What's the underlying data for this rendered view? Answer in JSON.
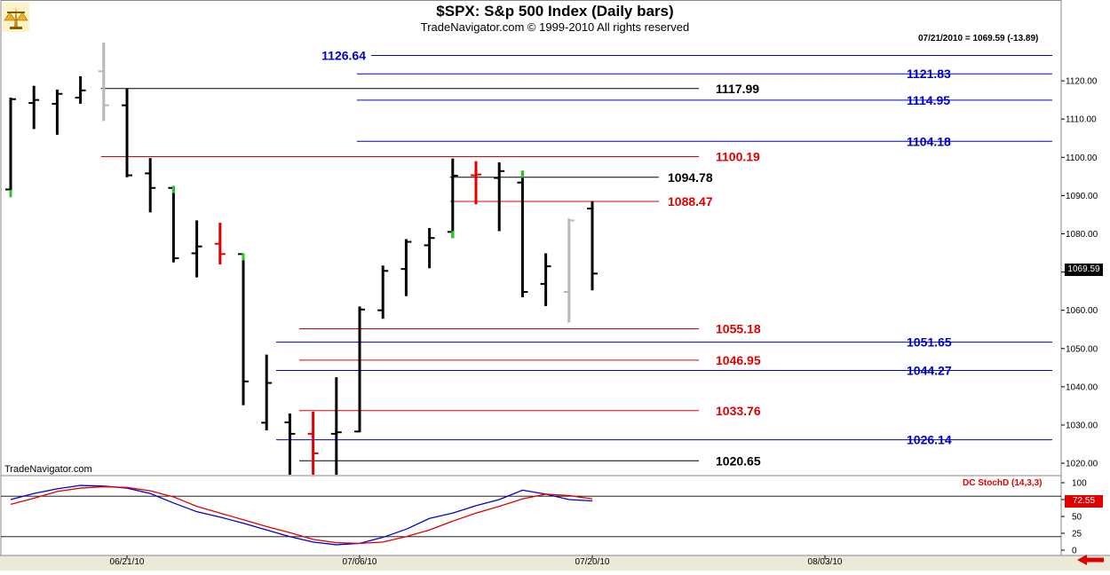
{
  "window": {
    "title": "$SPX:  S&p 500 Index  (Daily bars)",
    "subtitle": "TradeNavigator.com © 1999-2010 All rights reserved",
    "watermark": "TradeNavigator.com",
    "quote": "07/21/2010 = 1069.59 (-13.89)"
  },
  "colors": {
    "up_bar": "#000000",
    "down_bar_red": "#e00000",
    "highlight_green": "#22cc22",
    "gray_bar": "#b8b8b8",
    "level_blue": "#0000cc",
    "level_red": "#e00000",
    "level_black": "#000000",
    "stoch_k": "#0000cc",
    "stoch_d": "#e00000"
  },
  "chart_data": [
    {
      "type": "ohlc",
      "ylim": [
        1017,
        1130
      ],
      "yticks": [
        "1020.00",
        "1030.00",
        "1040.00",
        "1050.00",
        "1060.00",
        "1070.00",
        "1080.00",
        "1090.00",
        "1100.00",
        "1110.00",
        "1120.00"
      ],
      "last_price_label": "1069.59",
      "bars": [
        {
          "date": "06/14/10",
          "open": 1091.6,
          "high": 1115.6,
          "low": 1089.6,
          "close": 1115.2,
          "color": "green"
        },
        {
          "date": "06/15/10",
          "open": 1114.2,
          "high": 1118.7,
          "low": 1107.4,
          "close": 1115.0,
          "color": "black"
        },
        {
          "date": "06/16/10",
          "open": 1114.0,
          "high": 1117.7,
          "low": 1105.9,
          "close": 1116.6,
          "color": "black"
        },
        {
          "date": "06/17/10",
          "open": 1115.6,
          "high": 1121.2,
          "low": 1114.0,
          "close": 1117.5,
          "color": "black"
        },
        {
          "date": "06/18/10",
          "open": 1122.5,
          "high": 1130.0,
          "low": 1109.5,
          "close": 1113.6,
          "color": "gray"
        },
        {
          "date": "06/21/10",
          "open": 1113.6,
          "high": 1118.0,
          "low": 1094.8,
          "close": 1095.3,
          "color": "black"
        },
        {
          "date": "06/22/10",
          "open": 1095.8,
          "high": 1099.8,
          "low": 1085.6,
          "close": 1092.0,
          "color": "black"
        },
        {
          "date": "06/23/10",
          "open": 1092.0,
          "high": 1092.5,
          "low": 1072.5,
          "close": 1073.6,
          "color": "green"
        },
        {
          "date": "06/24/10",
          "open": 1074.9,
          "high": 1083.5,
          "low": 1068.6,
          "close": 1076.7,
          "color": "black"
        },
        {
          "date": "06/25/10",
          "open": 1077.4,
          "high": 1082.9,
          "low": 1072.0,
          "close": 1074.7,
          "color": "red"
        },
        {
          "date": "06/28/10",
          "open": 1074.7,
          "high": 1074.9,
          "low": 1035.2,
          "close": 1041.4,
          "color": "green"
        },
        {
          "date": "06/29/10",
          "open": 1030.6,
          "high": 1048.4,
          "low": 1028.6,
          "close": 1041.0,
          "color": "black"
        },
        {
          "date": "06/30/10",
          "open": 1030.7,
          "high": 1033.0,
          "low": 1017.0,
          "close": 1027.7,
          "color": "black"
        },
        {
          "date": "07/01/10",
          "open": 1027.7,
          "high": 1033.5,
          "low": 1017.0,
          "close": 1022.6,
          "color": "red"
        },
        {
          "date": "07/02/10",
          "open": 1027.7,
          "high": 1042.5,
          "low": 1017.0,
          "close": 1028.1,
          "color": "black"
        },
        {
          "date": "07/06/10",
          "open": 1028.3,
          "high": 1061.0,
          "low": 1028.1,
          "close": 1060.2,
          "color": "black"
        },
        {
          "date": "07/07/10",
          "open": 1060.0,
          "high": 1071.7,
          "low": 1057.8,
          "close": 1070.3,
          "color": "black"
        },
        {
          "date": "07/08/10",
          "open": 1070.8,
          "high": 1078.6,
          "low": 1063.7,
          "close": 1077.9,
          "color": "black"
        },
        {
          "date": "07/09/10",
          "open": 1077.0,
          "high": 1081.5,
          "low": 1071.0,
          "close": 1078.9,
          "color": "black"
        },
        {
          "date": "07/12/10",
          "open": 1080.5,
          "high": 1099.7,
          "low": 1078.9,
          "close": 1095.2,
          "color": "green"
        },
        {
          "date": "07/13/10",
          "open": 1095.3,
          "high": 1099.0,
          "low": 1087.7,
          "close": 1095.5,
          "color": "red"
        },
        {
          "date": "07/14/10",
          "open": 1094.6,
          "high": 1098.7,
          "low": 1080.7,
          "close": 1096.4,
          "color": "black"
        },
        {
          "date": "07/15/10",
          "open": 1093.4,
          "high": 1096.5,
          "low": 1063.4,
          "close": 1064.8,
          "color": "green"
        },
        {
          "date": "07/16/10",
          "open": 1066.9,
          "high": 1074.9,
          "low": 1061.1,
          "close": 1071.5,
          "color": "black"
        },
        {
          "date": "07/19/10",
          "open": 1064.8,
          "high": 1084.0,
          "low": 1056.8,
          "close": 1083.5,
          "color": "gray"
        },
        {
          "date": "07/20/10",
          "open": 1086.6,
          "high": 1088.5,
          "low": 1065.2,
          "close": 1069.6,
          "color": "black"
        }
      ],
      "levels": [
        {
          "price": 1126.64,
          "label": "1126.64",
          "color": "blue",
          "from": "06/29/10",
          "to": "right",
          "label_pos": "left"
        },
        {
          "price": 1121.83,
          "label": "1121.83",
          "color": "blue",
          "from": "07/06/10",
          "to": "right",
          "label_pos": "right"
        },
        {
          "price": 1117.99,
          "label": "1117.99",
          "color": "black",
          "from": "06/18/10",
          "to": "07/20/10+",
          "label_pos": "mid"
        },
        {
          "price": 1114.95,
          "label": "1114.95",
          "color": "blue",
          "from": "07/06/10",
          "to": "right",
          "label_pos": "right"
        },
        {
          "price": 1104.18,
          "label": "1104.18",
          "color": "blue",
          "from": "07/06/10",
          "to": "right",
          "label_pos": "right"
        },
        {
          "price": 1100.19,
          "label": "1100.19",
          "color": "red",
          "from": "06/18/10",
          "to": "07/20/10+",
          "label_pos": "mid"
        },
        {
          "price": 1094.78,
          "label": "1094.78",
          "color": "black",
          "from": "07/12/10",
          "to": "07/20/10",
          "label_pos": "near"
        },
        {
          "price": 1088.47,
          "label": "1088.47",
          "color": "red",
          "from": "07/12/10",
          "to": "07/20/10",
          "label_pos": "near"
        },
        {
          "price": 1055.18,
          "label": "1055.18",
          "color": "red",
          "from": "06/30/10",
          "to": "07/20/10+",
          "label_pos": "mid"
        },
        {
          "price": 1051.65,
          "label": "1051.65",
          "color": "blue",
          "from": "06/29/10",
          "to": "right",
          "label_pos": "right"
        },
        {
          "price": 1046.95,
          "label": "1046.95",
          "color": "red",
          "from": "06/30/10",
          "to": "07/20/10+",
          "label_pos": "mid"
        },
        {
          "price": 1044.27,
          "label": "1044.27",
          "color": "blue",
          "from": "06/29/10",
          "to": "right",
          "label_pos": "right"
        },
        {
          "price": 1033.76,
          "label": "1033.76",
          "color": "red",
          "from": "06/30/10",
          "to": "07/20/10+",
          "label_pos": "mid"
        },
        {
          "price": 1026.14,
          "label": "1026.14",
          "color": "blue",
          "from": "06/29/10",
          "to": "right",
          "label_pos": "right"
        },
        {
          "price": 1020.65,
          "label": "1020.65",
          "color": "black",
          "from": "06/30/10",
          "to": "07/20/10+",
          "label_pos": "mid"
        }
      ]
    },
    {
      "type": "line",
      "name": "DC StochD (14,3,3)",
      "ylim": [
        0,
        100
      ],
      "yticks": [
        "100",
        "75",
        "50",
        "25",
        "0"
      ],
      "reference_lines": [
        80,
        20
      ],
      "last_value_label": "72.55",
      "k": [
        75,
        84,
        91,
        96,
        95,
        92,
        84,
        70,
        57,
        49,
        40,
        30,
        20,
        12,
        8,
        10,
        19,
        31,
        47,
        55,
        66,
        75,
        89,
        83,
        75,
        73
      ],
      "d": [
        68,
        77,
        87,
        92,
        94,
        93,
        88,
        79,
        65,
        55,
        45,
        35,
        26,
        16,
        11,
        10,
        12,
        20,
        30,
        43,
        55,
        65,
        76,
        83,
        81,
        76
      ]
    }
  ],
  "x_axis": {
    "tick_labels": [
      {
        "label": "06/21/10",
        "at": "06/21/10"
      },
      {
        "label": "07/06/10",
        "at": "07/06/10"
      },
      {
        "label": "07/20/10",
        "at": "07/20/10"
      },
      {
        "label": "08/03/10",
        "at": "08/03/10"
      }
    ]
  }
}
